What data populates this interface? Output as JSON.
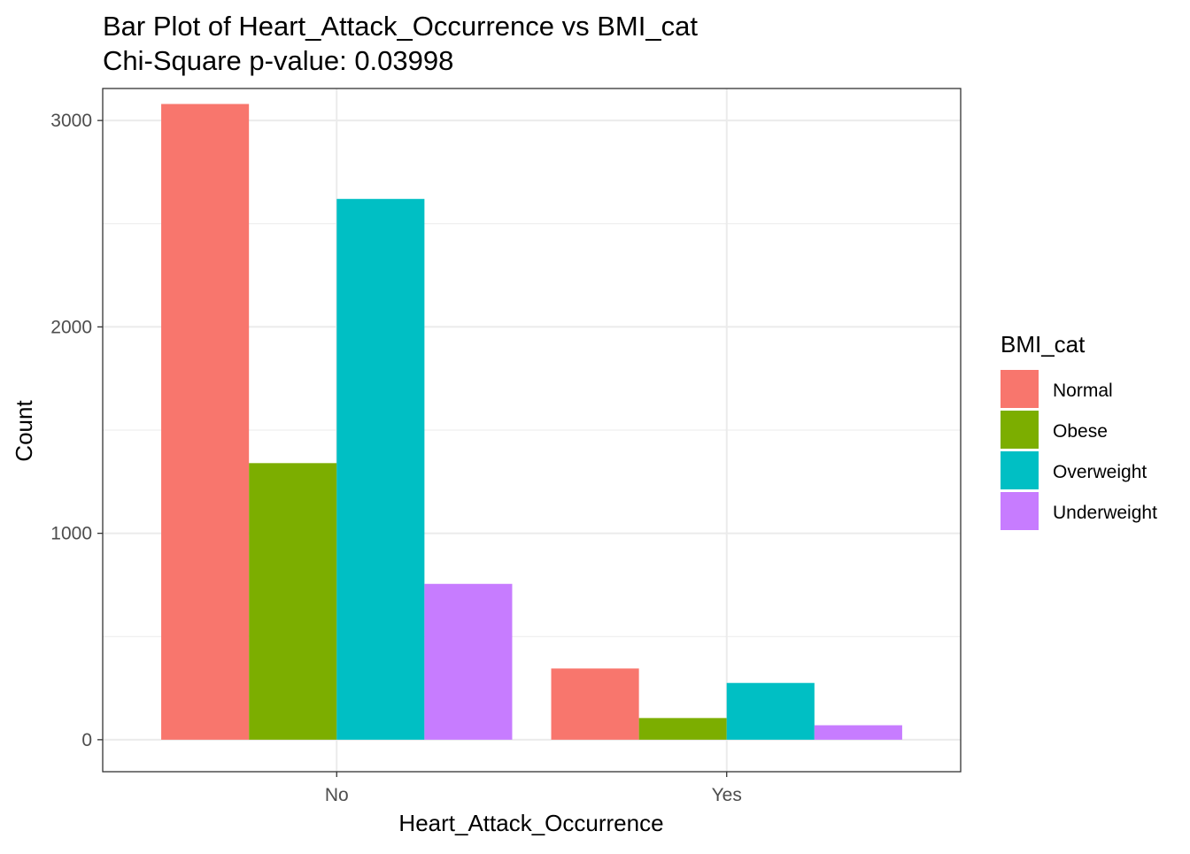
{
  "chart_data": {
    "type": "bar",
    "title": "Bar Plot of Heart_Attack_Occurrence vs BMI_cat",
    "subtitle": "Chi-Square p-value: 0.03998",
    "xlabel": "Heart_Attack_Occurrence",
    "ylabel": "Count",
    "categories": [
      "No",
      "Yes"
    ],
    "ylim": [
      -155,
      3155
    ],
    "yticks": [
      0,
      1000,
      2000,
      3000
    ],
    "ytick_labels": [
      "0",
      "1000",
      "2000",
      "3000"
    ],
    "grid": true,
    "legend": {
      "title": "BMI_cat",
      "position": "right"
    },
    "series": [
      {
        "name": "Normal",
        "color": "#F8766D",
        "values": [
          3080,
          345
        ]
      },
      {
        "name": "Obese",
        "color": "#7CAE00",
        "values": [
          1340,
          105
        ]
      },
      {
        "name": "Overweight",
        "color": "#00BFC4",
        "values": [
          2620,
          275
        ]
      },
      {
        "name": "Underweight",
        "color": "#C77CFF",
        "values": [
          755,
          70
        ]
      }
    ]
  }
}
